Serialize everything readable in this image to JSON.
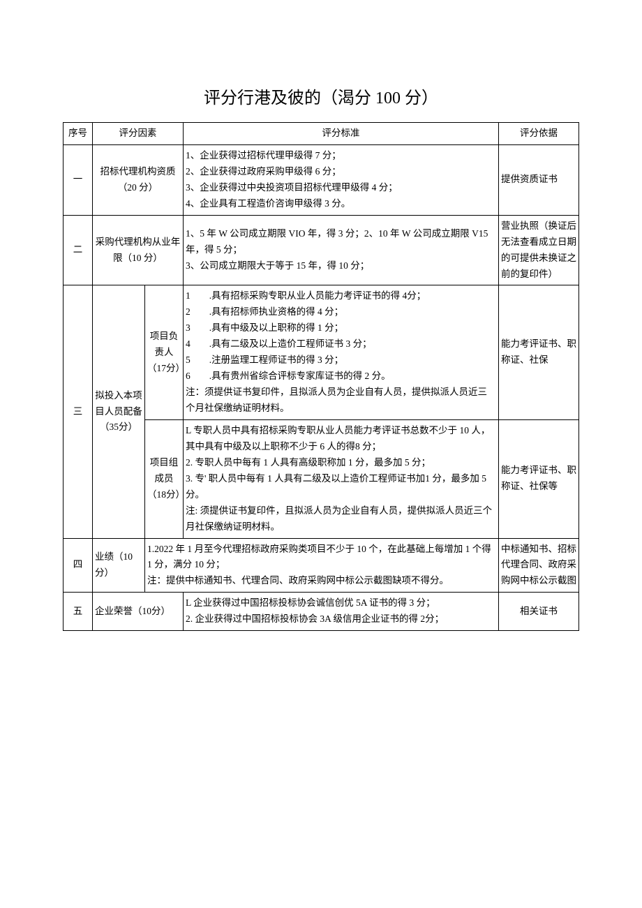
{
  "title": "评分行港及彼的（渴分 100 分）",
  "headers": {
    "seq": "序号",
    "factor": "评分因素",
    "criteria": "评分标准",
    "basis": "评分依据"
  },
  "rows": {
    "r1": {
      "seq": "一",
      "factor": "招标代理机构资质（20 分）",
      "criteria": "1、企业获得过招标代理甲级得 7 分；\n2、企业获得过政府采购甲级得 6 分；\n3、企业获得过中央投资项目招标代理甲级得 4 分；\n4、企业具有工程造价咨询甲级得 3 分。",
      "basis": "提供资质证书"
    },
    "r2": {
      "seq": "二",
      "factor": "采购代理机构从业年限（10 分）",
      "criteria": "1、5 年 W 公司成立期限 VIO 年，得 3 分；2、10 年 W 公司成立期限 V15 年，得 5 分；\n3、公司成立期限大于等于 15 年，得 10 分；",
      "basis": "营业执照（换证后无法查看成立日期的可提供未换证之前的复印件）"
    },
    "r3": {
      "seq": "三",
      "factor": "拟投入本项目人员配备（35分）",
      "sub1": "项目负责人（17分）",
      "criteria1": "1  .具有招标采购专职从业人员能力考评证书的得 4分；\n2  .具有招标师执业资格的得 4 分；\n3  .具有中级及以上职称的得 1 分；\n4  .具有二级及以上造价工程师证书 3 分；\n5  .注册监理工程师证书的得 3 分；\n6  .具有贵州省综合评标专家库证书的得 2 分。\n注：须提供证书复印件，且拟派人员为企业自有人员，提供拟派人员近三个月社保缴纳证明材料。",
      "basis1": "能力考评证书、职称证、社保",
      "sub2": "项目组成员（18分）",
      "criteria2": "L 专职人员中具有招标采购专职从业人员能力考评证书总数不少于 10 人，其中具有中级及以上职称不少于 6 人的得8 分；\n2. 专职人员中每有 1 人具有高级职称加 1 分，最多加 5 分；\n3. 专' 职人员中每有 1 人具有二级及以上造价工程师证书加1 分，最多加 5 分。\n注: 须提供证书复印件，且拟派人员为企业自有人员，提供拟派人员近三个月社保缴纳证明材料。",
      "basis2": "能力考评证书、职称证、社保等"
    },
    "r4": {
      "seq": "四",
      "factor": "业绩（10分）",
      "criteria": "1.2022 年 1 月至今代理招标政府采购类项目不少于 10 个，在此基础上每增加 1 个得 1 分，满分 10 分；\n注：提供中标通知书、代理合同、政府采购网中标公示截图缺项不得分。",
      "basis": "中标通知书、招标代理合同、政府采购网中标公示截图"
    },
    "r5": {
      "seq": "五",
      "factor": "企业荣誉（10分）",
      "criteria": "L 企业获得过中国招标投标协会诚信创优 5A 证书的得 3 分；\n2. 企业获得过中国招标投标协会 3A 级信用企业证书的得 2分；",
      "basis": "相关证书"
    }
  }
}
